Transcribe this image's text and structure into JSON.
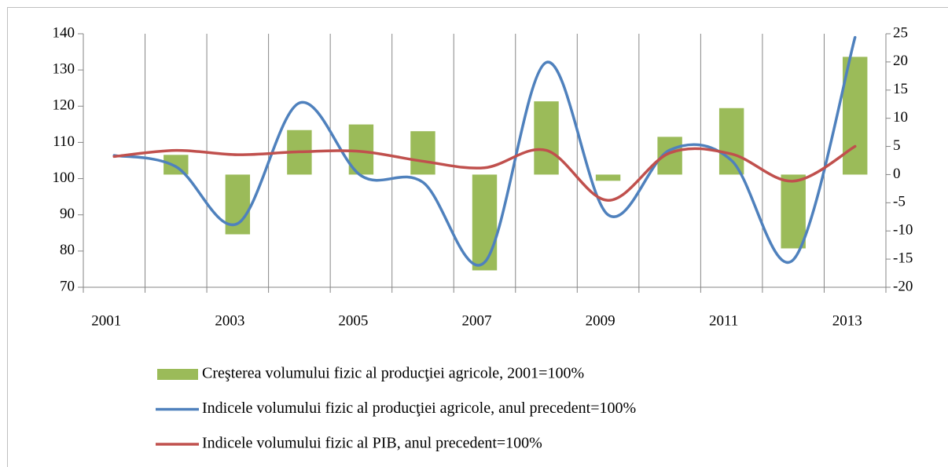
{
  "chart_data": {
    "type": "combo",
    "categories": [
      "2001",
      null,
      "2003",
      null,
      "2005",
      null,
      "2007",
      null,
      "2009",
      null,
      "2011",
      null,
      "2013"
    ],
    "series": [
      {
        "name": "Creşterea volumului fizic al producţiei agricole, 2001=100%",
        "type": "bar",
        "axis": "y2",
        "color": "#9bbb59",
        "values": [
          0,
          3.5,
          -10.6,
          7.9,
          8.9,
          7.7,
          -17,
          13,
          -1.1,
          6.7,
          11.8,
          -13.1,
          20.9
        ]
      },
      {
        "name": "Indicele volumului fizic al producţiei agricole, anul precedent=100%",
        "type": "line",
        "color": "#4f81bd",
        "values": [
          106.4,
          103.3,
          87.6,
          120.9,
          100.8,
          99,
          76.9,
          132.1,
          90,
          107.9,
          105,
          77.6,
          139
        ]
      },
      {
        "name": "Indicele volumului fizic al PIB,  anul precedent=100%",
        "type": "line",
        "color": "#c0504d",
        "values": [
          106.1,
          107.8,
          106.6,
          107.4,
          107.5,
          104.8,
          103,
          107.8,
          94,
          107.1,
          106.8,
          99.3,
          108.9
        ]
      }
    ],
    "ylim": [
      70,
      140
    ],
    "yticks": [
      70,
      80,
      90,
      100,
      110,
      120,
      130,
      140
    ],
    "y2lim": [
      -20,
      25
    ],
    "y2ticks": [
      -20,
      -15,
      -10,
      -5,
      0,
      5,
      10,
      15,
      20,
      25
    ],
    "grid": "x",
    "legend": "bottom"
  }
}
